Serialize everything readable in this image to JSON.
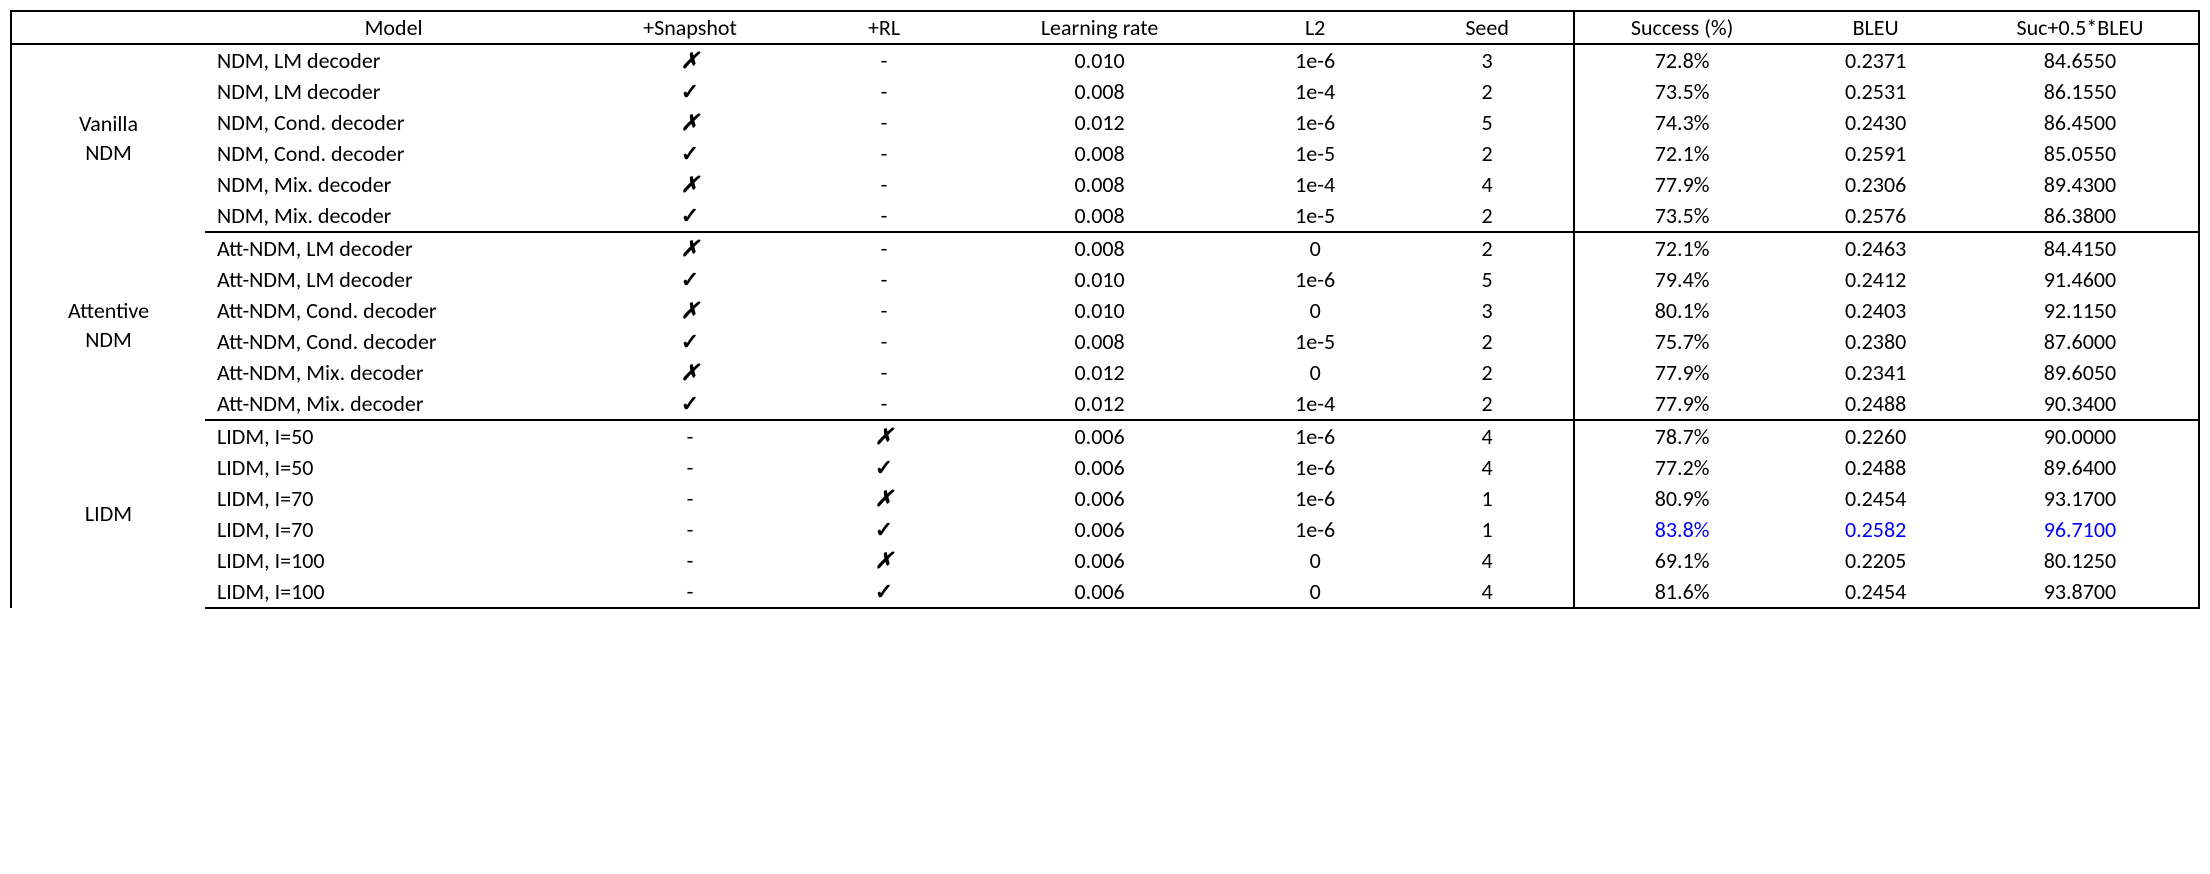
{
  "table": {
    "type": "table",
    "font_family": "Calibri",
    "text_color": "#000000",
    "highlight_color": "#0000ff",
    "border_color": "#000000",
    "background_color": "#ffffff",
    "check_glyph": "✓",
    "cross_glyph": "✗",
    "dash_glyph": "-",
    "columns": [
      {
        "key": "group",
        "label": "",
        "width_pct": 9,
        "align": "center"
      },
      {
        "key": "model",
        "label": "Model",
        "width_pct": 17.5,
        "align": "left"
      },
      {
        "key": "snapshot",
        "label": "+Snapshot",
        "width_pct": 10,
        "align": "center"
      },
      {
        "key": "rl",
        "label": "+RL",
        "width_pct": 8,
        "align": "center"
      },
      {
        "key": "lr",
        "label": "Learning rate",
        "width_pct": 12,
        "align": "center"
      },
      {
        "key": "l2",
        "label": "L2",
        "width_pct": 8,
        "align": "center"
      },
      {
        "key": "seed",
        "label": "Seed",
        "width_pct": 8,
        "align": "center"
      },
      {
        "key": "success",
        "label": "Success (%)",
        "width_pct": 10,
        "align": "center"
      },
      {
        "key": "bleu",
        "label": "BLEU",
        "width_pct": 8,
        "align": "center"
      },
      {
        "key": "combo",
        "label": "Suc+0.5*BLEU",
        "width_pct": 11,
        "align": "center"
      }
    ],
    "groups": [
      {
        "name_line1": "Vanilla",
        "name_line2": "NDM",
        "rows": [
          {
            "model": "NDM, LM decoder",
            "snapshot": "cross",
            "rl": "dash",
            "lr": "0.010",
            "l2": "1e-6",
            "seed": "3",
            "success": "72.8%",
            "bleu": "0.2371",
            "combo": "84.6550"
          },
          {
            "model": "NDM, LM decoder",
            "snapshot": "check",
            "rl": "dash",
            "lr": "0.008",
            "l2": "1e-4",
            "seed": "2",
            "success": "73.5%",
            "bleu": "0.2531",
            "combo": "86.1550"
          },
          {
            "model": "NDM, Cond. decoder",
            "snapshot": "cross",
            "rl": "dash",
            "lr": "0.012",
            "l2": "1e-6",
            "seed": "5",
            "success": "74.3%",
            "bleu": "0.2430",
            "combo": "86.4500"
          },
          {
            "model": "NDM, Cond. decoder",
            "snapshot": "check",
            "rl": "dash",
            "lr": "0.008",
            "l2": "1e-5",
            "seed": "2",
            "success": "72.1%",
            "bleu": "0.2591",
            "combo": "85.0550"
          },
          {
            "model": "NDM, Mix. decoder",
            "snapshot": "cross",
            "rl": "dash",
            "lr": "0.008",
            "l2": "1e-4",
            "seed": "4",
            "success": "77.9%",
            "bleu": "0.2306",
            "combo": "89.4300"
          },
          {
            "model": "NDM, Mix. decoder",
            "snapshot": "check",
            "rl": "dash",
            "lr": "0.008",
            "l2": "1e-5",
            "seed": "2",
            "success": "73.5%",
            "bleu": "0.2576",
            "combo": "86.3800"
          }
        ]
      },
      {
        "name_line1": "Attentive",
        "name_line2": "NDM",
        "rows": [
          {
            "model": "Att-NDM, LM decoder",
            "snapshot": "cross",
            "rl": "dash",
            "lr": "0.008",
            "l2": "0",
            "seed": "2",
            "success": "72.1%",
            "bleu": "0.2463",
            "combo": "84.4150"
          },
          {
            "model": "Att-NDM, LM decoder",
            "snapshot": "check",
            "rl": "dash",
            "lr": "0.010",
            "l2": "1e-6",
            "seed": "5",
            "success": "79.4%",
            "bleu": "0.2412",
            "combo": "91.4600"
          },
          {
            "model": "Att-NDM, Cond. decoder",
            "snapshot": "cross",
            "rl": "dash",
            "lr": "0.010",
            "l2": "0",
            "seed": "3",
            "success": "80.1%",
            "bleu": "0.2403",
            "combo": "92.1150"
          },
          {
            "model": "Att-NDM, Cond. decoder",
            "snapshot": "check",
            "rl": "dash",
            "lr": "0.008",
            "l2": "1e-5",
            "seed": "2",
            "success": "75.7%",
            "bleu": "0.2380",
            "combo": "87.6000"
          },
          {
            "model": "Att-NDM, Mix. decoder",
            "snapshot": "cross",
            "rl": "dash",
            "lr": "0.012",
            "l2": "0",
            "seed": "2",
            "success": "77.9%",
            "bleu": "0.2341",
            "combo": "89.6050"
          },
          {
            "model": "Att-NDM, Mix. decoder",
            "snapshot": "check",
            "rl": "dash",
            "lr": "0.012",
            "l2": "1e-4",
            "seed": "2",
            "success": "77.9%",
            "bleu": "0.2488",
            "combo": "90.3400"
          }
        ]
      },
      {
        "name_line1": "LIDM",
        "name_line2": "",
        "rows": [
          {
            "model": "LIDM, I=50",
            "snapshot": "dash",
            "rl": "cross",
            "lr": "0.006",
            "l2": "1e-6",
            "seed": "4",
            "success": "78.7%",
            "bleu": "0.2260",
            "combo": "90.0000"
          },
          {
            "model": "LIDM, I=50",
            "snapshot": "dash",
            "rl": "check",
            "lr": "0.006",
            "l2": "1e-6",
            "seed": "4",
            "success": "77.2%",
            "bleu": "0.2488",
            "combo": "89.6400"
          },
          {
            "model": "LIDM, I=70",
            "snapshot": "dash",
            "rl": "cross",
            "lr": "0.006",
            "l2": "1e-6",
            "seed": "1",
            "success": "80.9%",
            "bleu": "0.2454",
            "combo": "93.1700"
          },
          {
            "model": "LIDM, I=70",
            "snapshot": "dash",
            "rl": "check",
            "lr": "0.006",
            "l2": "1e-6",
            "seed": "1",
            "success": "83.8%",
            "bleu": "0.2582",
            "combo": "96.7100",
            "highlight": [
              "success",
              "bleu",
              "combo"
            ]
          },
          {
            "model": "LIDM, I=100",
            "snapshot": "dash",
            "rl": "cross",
            "lr": "0.006",
            "l2": "0",
            "seed": "4",
            "success": "69.1%",
            "bleu": "0.2205",
            "combo": "80.1250"
          },
          {
            "model": "LIDM, I=100",
            "snapshot": "dash",
            "rl": "check",
            "lr": "0.006",
            "l2": "0",
            "seed": "4",
            "success": "81.6%",
            "bleu": "0.2454",
            "combo": "93.8700"
          }
        ]
      }
    ]
  }
}
